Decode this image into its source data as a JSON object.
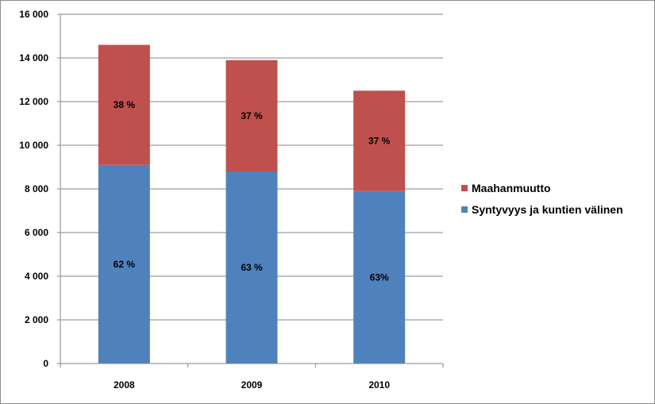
{
  "chart_data": {
    "type": "bar",
    "stacked": true,
    "categories": [
      "2008",
      "2009",
      "2010"
    ],
    "series": [
      {
        "name": "Syntyvyys ja kuntien välinen",
        "color": "#4f81bd",
        "values": [
          9100,
          8800,
          7900
        ],
        "labels": [
          "62 %",
          "63 %",
          "63%"
        ]
      },
      {
        "name": "Maahanmuutto",
        "color": "#c0504d",
        "values": [
          5500,
          5100,
          4600
        ],
        "labels": [
          "38 %",
          "37 %",
          "37 %"
        ]
      }
    ],
    "ylim": [
      0,
      16000
    ],
    "yticks": [
      0,
      2000,
      4000,
      6000,
      8000,
      10000,
      12000,
      14000,
      16000
    ],
    "ytick_labels": [
      "0",
      "2 000",
      "4 000",
      "6 000",
      "8 000",
      "10 000",
      "12 000",
      "14 000",
      "16 000"
    ],
    "grid": true,
    "legend_position": "right",
    "legend_order": [
      "Maahanmuutto",
      "Syntyvyys ja kuntien välinen"
    ],
    "title": "",
    "xlabel": "",
    "ylabel": ""
  }
}
